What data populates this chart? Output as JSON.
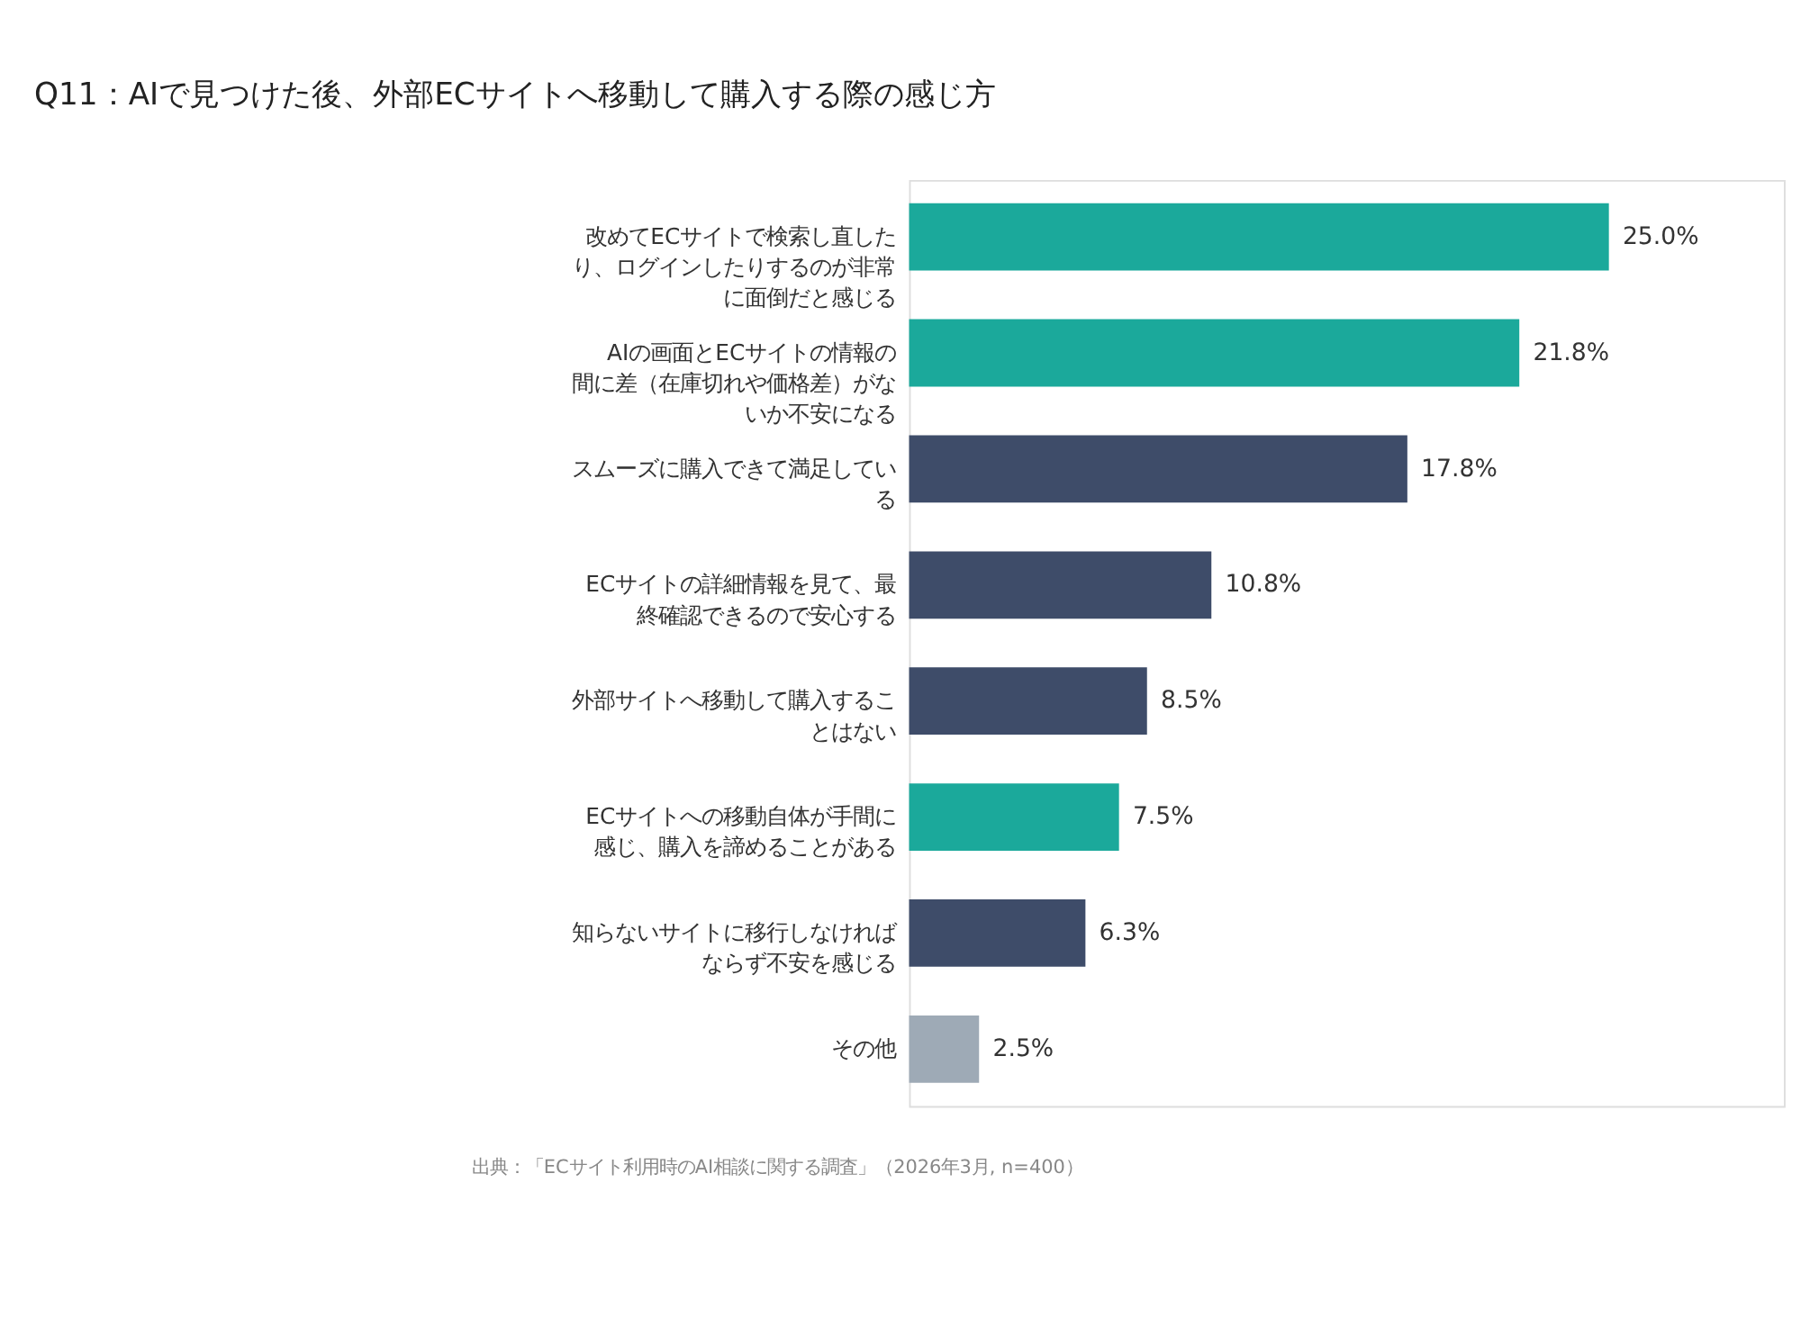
{
  "chart_data": {
    "type": "bar",
    "orientation": "horizontal",
    "title": "Q11：AIで見つけた後、外部ECサイトへ移動して購入する際の感じ方",
    "categories": [
      "改めてECサイトで検索し直したり、ログインしたりするのが非常に面倒だと感じる",
      "AIの画面とECサイトの情報の間に差（在庫切れや価格差）がないか不安になる",
      "スムーズに購入できて満足している",
      "ECサイトの詳細情報を見て、最終確認できるので安心する",
      "外部サイトへ移動して購入することはない",
      "ECサイトへの移動自体が手間に感じ、購入を諦めることがある",
      "知らないサイトに移行しなければならず不安を感じる",
      "その他"
    ],
    "values": [
      25.0,
      21.8,
      17.8,
      10.8,
      8.5,
      7.5,
      6.3,
      2.5
    ],
    "colors": [
      "#1ba99b",
      "#1ba99b",
      "#3e4c69",
      "#3e4c69",
      "#3e4c69",
      "#1ba99b",
      "#3e4c69",
      "#9eaab6"
    ],
    "value_labels": [
      "25.0%",
      "21.8%",
      "17.8%",
      "10.8%",
      "8.5%",
      "7.5%",
      "6.3%",
      "2.5%"
    ],
    "xlim": [
      0,
      31.25
    ],
    "grid": false,
    "annotations": [
      "出典：「ECサイト利用時のAI相談に関する調査」（2026年3月, n=400）"
    ]
  }
}
